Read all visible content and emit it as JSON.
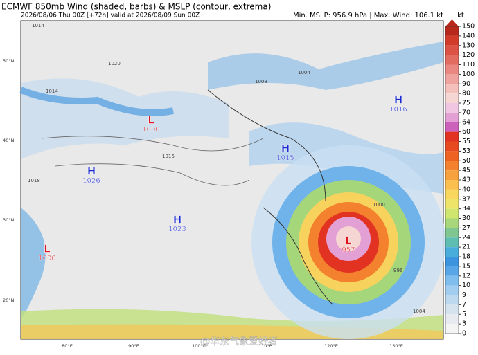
{
  "header": {
    "title": "ECMWF 850mb Wind (shaded, barbs) & MSLP (contour, extrema)",
    "subtitle": "2026/08/06 Thu 00Z [+72h] valid at 2026/08/09 Sun 00Z",
    "stats": "Min. MSLP: 956.9 hPa | Max. Wind: 106.1 kt"
  },
  "colorbar": {
    "unit": "kt",
    "levels": [
      150,
      140,
      130,
      120,
      110,
      100,
      90,
      80,
      75,
      70,
      64,
      60,
      55,
      53,
      50,
      45,
      43,
      40,
      37,
      34,
      30,
      27,
      24,
      21,
      18,
      15,
      12,
      10,
      9,
      7,
      5,
      3,
      0
    ],
    "colors": [
      "#b8281a",
      "#d23a2a",
      "#dc5244",
      "#e36c60",
      "#e98780",
      "#eea39e",
      "#f3c0bc",
      "#f6d6d3",
      "#f1c6e2",
      "#e3a0d4",
      "#cc62bc",
      "#e23222",
      "#e84a20",
      "#ef6322",
      "#f3812e",
      "#f7a03e",
      "#fabf4e",
      "#f9d75e",
      "#eee46a",
      "#cfe56e",
      "#a8d67a",
      "#80c690",
      "#5ebeb2",
      "#48addb",
      "#3c94df",
      "#58a6e8",
      "#7fbdef",
      "#a0cdf0",
      "#bdd9ef",
      "#d5e3ee",
      "#e7ebf0",
      "#f4f4f4"
    ]
  },
  "map": {
    "lat_labels": [
      "50°N",
      "40°N",
      "30°N",
      "20°N"
    ],
    "lon_labels": [
      "80°E",
      "90°E",
      "100°E",
      "110°E",
      "120°E",
      "130°E"
    ],
    "centers": [
      {
        "type": "L",
        "value": "1000"
      },
      {
        "type": "H",
        "value": "1026"
      },
      {
        "type": "H",
        "value": "1015"
      },
      {
        "type": "H",
        "value": "1023"
      },
      {
        "type": "L",
        "value": "1000"
      },
      {
        "type": "L",
        "value": "957"
      },
      {
        "type": "H",
        "value": "1016"
      }
    ],
    "isobar_labels": [
      "1014",
      "1020",
      "1014",
      "1016",
      "1018",
      "1008",
      "1004",
      "1000",
      "996",
      "1004"
    ]
  },
  "watermark": "@华东气象爱好者"
}
